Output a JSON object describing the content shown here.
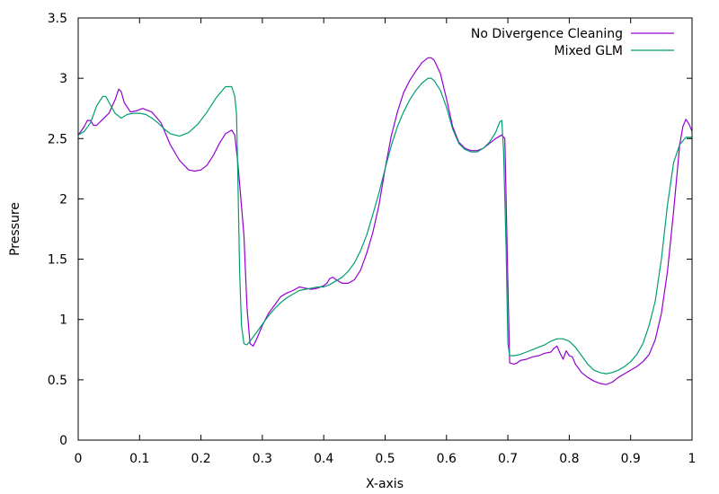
{
  "chart_data": {
    "type": "line",
    "xlabel": "X-axis",
    "ylabel": "Pressure",
    "xlim": [
      0,
      1
    ],
    "ylim": [
      0,
      3.5
    ],
    "x_ticks": [
      {
        "value": 0,
        "label": "0"
      },
      {
        "value": 0.1,
        "label": "0.1"
      },
      {
        "value": 0.2,
        "label": "0.2"
      },
      {
        "value": 0.3,
        "label": "0.3"
      },
      {
        "value": 0.4,
        "label": "0.4"
      },
      {
        "value": 0.5,
        "label": "0.5"
      },
      {
        "value": 0.6,
        "label": "0.6"
      },
      {
        "value": 0.7,
        "label": "0.7"
      },
      {
        "value": 0.8,
        "label": "0.8"
      },
      {
        "value": 0.9,
        "label": "0.9"
      },
      {
        "value": 1,
        "label": "1"
      }
    ],
    "y_ticks": [
      {
        "value": 0,
        "label": "0"
      },
      {
        "value": 0.5,
        "label": "0.5"
      },
      {
        "value": 1,
        "label": "1"
      },
      {
        "value": 1.5,
        "label": "1.5"
      },
      {
        "value": 2,
        "label": "2"
      },
      {
        "value": 2.5,
        "label": "2.5"
      },
      {
        "value": 3,
        "label": "3"
      },
      {
        "value": 3.5,
        "label": "3.5"
      }
    ],
    "grid": false,
    "legend_position": "top-right",
    "series": [
      {
        "name": "No Divergence Cleaning",
        "color": "#9400d3",
        "points": [
          [
            0,
            2.53
          ],
          [
            0.01,
            2.6
          ],
          [
            0.015,
            2.65
          ],
          [
            0.02,
            2.65
          ],
          [
            0.025,
            2.61
          ],
          [
            0.03,
            2.61
          ],
          [
            0.04,
            2.66
          ],
          [
            0.05,
            2.71
          ],
          [
            0.06,
            2.82
          ],
          [
            0.066,
            2.91
          ],
          [
            0.07,
            2.89
          ],
          [
            0.075,
            2.8
          ],
          [
            0.085,
            2.72
          ],
          [
            0.095,
            2.73
          ],
          [
            0.105,
            2.75
          ],
          [
            0.12,
            2.72
          ],
          [
            0.135,
            2.63
          ],
          [
            0.15,
            2.45
          ],
          [
            0.165,
            2.32
          ],
          [
            0.18,
            2.24
          ],
          [
            0.19,
            2.23
          ],
          [
            0.2,
            2.24
          ],
          [
            0.21,
            2.28
          ],
          [
            0.22,
            2.36
          ],
          [
            0.23,
            2.46
          ],
          [
            0.24,
            2.54
          ],
          [
            0.25,
            2.57
          ],
          [
            0.255,
            2.53
          ],
          [
            0.26,
            2.3
          ],
          [
            0.265,
            2.0
          ],
          [
            0.27,
            1.7
          ],
          [
            0.275,
            1.1
          ],
          [
            0.28,
            0.8
          ],
          [
            0.285,
            0.78
          ],
          [
            0.29,
            0.83
          ],
          [
            0.3,
            0.95
          ],
          [
            0.31,
            1.05
          ],
          [
            0.32,
            1.12
          ],
          [
            0.33,
            1.19
          ],
          [
            0.34,
            1.22
          ],
          [
            0.35,
            1.24
          ],
          [
            0.36,
            1.27
          ],
          [
            0.37,
            1.26
          ],
          [
            0.38,
            1.25
          ],
          [
            0.39,
            1.26
          ],
          [
            0.4,
            1.28
          ],
          [
            0.405,
            1.3
          ],
          [
            0.41,
            1.34
          ],
          [
            0.415,
            1.35
          ],
          [
            0.42,
            1.33
          ],
          [
            0.43,
            1.3
          ],
          [
            0.44,
            1.3
          ],
          [
            0.45,
            1.33
          ],
          [
            0.46,
            1.41
          ],
          [
            0.47,
            1.55
          ],
          [
            0.48,
            1.72
          ],
          [
            0.49,
            1.95
          ],
          [
            0.5,
            2.25
          ],
          [
            0.51,
            2.52
          ],
          [
            0.52,
            2.72
          ],
          [
            0.53,
            2.88
          ],
          [
            0.54,
            2.98
          ],
          [
            0.55,
            3.06
          ],
          [
            0.56,
            3.13
          ],
          [
            0.57,
            3.17
          ],
          [
            0.575,
            3.17
          ],
          [
            0.58,
            3.15
          ],
          [
            0.59,
            3.04
          ],
          [
            0.6,
            2.83
          ],
          [
            0.61,
            2.6
          ],
          [
            0.62,
            2.47
          ],
          [
            0.63,
            2.42
          ],
          [
            0.64,
            2.4
          ],
          [
            0.65,
            2.4
          ],
          [
            0.66,
            2.42
          ],
          [
            0.67,
            2.46
          ],
          [
            0.68,
            2.5
          ],
          [
            0.69,
            2.53
          ],
          [
            0.695,
            2.5
          ],
          [
            0.7,
            1.3
          ],
          [
            0.703,
            0.64
          ],
          [
            0.71,
            0.63
          ],
          [
            0.715,
            0.64
          ],
          [
            0.72,
            0.66
          ],
          [
            0.73,
            0.67
          ],
          [
            0.74,
            0.69
          ],
          [
            0.75,
            0.7
          ],
          [
            0.76,
            0.72
          ],
          [
            0.77,
            0.73
          ],
          [
            0.775,
            0.76
          ],
          [
            0.78,
            0.78
          ],
          [
            0.785,
            0.72
          ],
          [
            0.79,
            0.67
          ],
          [
            0.795,
            0.74
          ],
          [
            0.8,
            0.7
          ],
          [
            0.805,
            0.69
          ],
          [
            0.81,
            0.63
          ],
          [
            0.82,
            0.56
          ],
          [
            0.83,
            0.52
          ],
          [
            0.84,
            0.49
          ],
          [
            0.85,
            0.47
          ],
          [
            0.86,
            0.46
          ],
          [
            0.87,
            0.48
          ],
          [
            0.88,
            0.52
          ],
          [
            0.89,
            0.55
          ],
          [
            0.9,
            0.58
          ],
          [
            0.91,
            0.61
          ],
          [
            0.92,
            0.65
          ],
          [
            0.93,
            0.71
          ],
          [
            0.94,
            0.83
          ],
          [
            0.95,
            1.05
          ],
          [
            0.96,
            1.4
          ],
          [
            0.97,
            1.9
          ],
          [
            0.98,
            2.45
          ],
          [
            0.985,
            2.6
          ],
          [
            0.99,
            2.66
          ],
          [
            0.995,
            2.62
          ],
          [
            1.0,
            2.56
          ]
        ]
      },
      {
        "name": "Mixed GLM",
        "color": "#009e73",
        "points": [
          [
            0,
            2.53
          ],
          [
            0.01,
            2.56
          ],
          [
            0.02,
            2.63
          ],
          [
            0.03,
            2.77
          ],
          [
            0.04,
            2.85
          ],
          [
            0.045,
            2.85
          ],
          [
            0.05,
            2.8
          ],
          [
            0.06,
            2.71
          ],
          [
            0.07,
            2.67
          ],
          [
            0.08,
            2.7
          ],
          [
            0.09,
            2.71
          ],
          [
            0.1,
            2.71
          ],
          [
            0.11,
            2.7
          ],
          [
            0.12,
            2.67
          ],
          [
            0.13,
            2.63
          ],
          [
            0.14,
            2.58
          ],
          [
            0.15,
            2.54
          ],
          [
            0.165,
            2.52
          ],
          [
            0.18,
            2.55
          ],
          [
            0.195,
            2.62
          ],
          [
            0.21,
            2.72
          ],
          [
            0.225,
            2.84
          ],
          [
            0.24,
            2.93
          ],
          [
            0.25,
            2.93
          ],
          [
            0.255,
            2.85
          ],
          [
            0.258,
            2.7
          ],
          [
            0.26,
            2.2
          ],
          [
            0.263,
            1.4
          ],
          [
            0.266,
            0.95
          ],
          [
            0.27,
            0.8
          ],
          [
            0.275,
            0.79
          ],
          [
            0.28,
            0.82
          ],
          [
            0.29,
            0.89
          ],
          [
            0.3,
            0.96
          ],
          [
            0.31,
            1.03
          ],
          [
            0.32,
            1.09
          ],
          [
            0.33,
            1.14
          ],
          [
            0.34,
            1.18
          ],
          [
            0.35,
            1.21
          ],
          [
            0.36,
            1.24
          ],
          [
            0.37,
            1.25
          ],
          [
            0.38,
            1.26
          ],
          [
            0.39,
            1.27
          ],
          [
            0.4,
            1.27
          ],
          [
            0.41,
            1.29
          ],
          [
            0.42,
            1.32
          ],
          [
            0.43,
            1.35
          ],
          [
            0.44,
            1.4
          ],
          [
            0.45,
            1.47
          ],
          [
            0.46,
            1.57
          ],
          [
            0.47,
            1.7
          ],
          [
            0.48,
            1.87
          ],
          [
            0.49,
            2.05
          ],
          [
            0.5,
            2.25
          ],
          [
            0.51,
            2.44
          ],
          [
            0.52,
            2.6
          ],
          [
            0.53,
            2.72
          ],
          [
            0.54,
            2.82
          ],
          [
            0.55,
            2.9
          ],
          [
            0.56,
            2.96
          ],
          [
            0.57,
            3.0
          ],
          [
            0.575,
            3.0
          ],
          [
            0.58,
            2.98
          ],
          [
            0.59,
            2.9
          ],
          [
            0.6,
            2.76
          ],
          [
            0.61,
            2.58
          ],
          [
            0.62,
            2.46
          ],
          [
            0.63,
            2.41
          ],
          [
            0.64,
            2.39
          ],
          [
            0.65,
            2.39
          ],
          [
            0.66,
            2.42
          ],
          [
            0.67,
            2.47
          ],
          [
            0.68,
            2.55
          ],
          [
            0.687,
            2.64
          ],
          [
            0.69,
            2.65
          ],
          [
            0.693,
            2.4
          ],
          [
            0.697,
            1.6
          ],
          [
            0.7,
            0.8
          ],
          [
            0.703,
            0.7
          ],
          [
            0.71,
            0.7
          ],
          [
            0.72,
            0.71
          ],
          [
            0.73,
            0.73
          ],
          [
            0.74,
            0.75
          ],
          [
            0.75,
            0.77
          ],
          [
            0.76,
            0.79
          ],
          [
            0.77,
            0.82
          ],
          [
            0.78,
            0.84
          ],
          [
            0.79,
            0.84
          ],
          [
            0.8,
            0.82
          ],
          [
            0.81,
            0.77
          ],
          [
            0.82,
            0.7
          ],
          [
            0.83,
            0.63
          ],
          [
            0.84,
            0.58
          ],
          [
            0.85,
            0.56
          ],
          [
            0.86,
            0.55
          ],
          [
            0.87,
            0.56
          ],
          [
            0.88,
            0.58
          ],
          [
            0.89,
            0.61
          ],
          [
            0.9,
            0.65
          ],
          [
            0.91,
            0.71
          ],
          [
            0.92,
            0.8
          ],
          [
            0.93,
            0.95
          ],
          [
            0.94,
            1.15
          ],
          [
            0.95,
            1.5
          ],
          [
            0.96,
            1.95
          ],
          [
            0.97,
            2.3
          ],
          [
            0.98,
            2.45
          ],
          [
            0.99,
            2.51
          ],
          [
            1.0,
            2.51
          ]
        ]
      }
    ]
  }
}
